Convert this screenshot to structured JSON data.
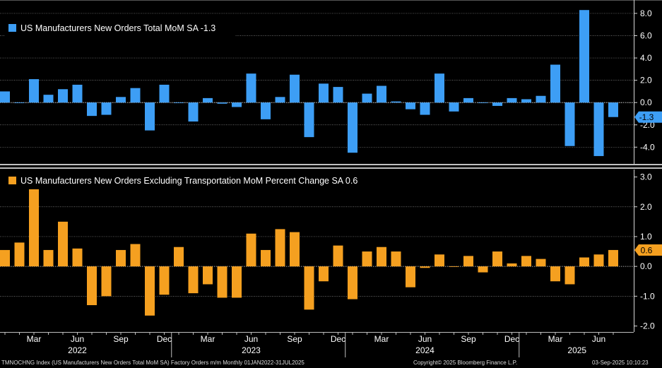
{
  "chart_data": [
    {
      "type": "bar",
      "title": "US Manufacturers New Orders Total MoM SA",
      "legend_value": "-1.3",
      "last_value_label": "-1.3",
      "color": "#3d9ef5",
      "ylim": [
        -5.5,
        9.2
      ],
      "yticks": [
        -4.0,
        -2.0,
        0.0,
        2.0,
        4.0,
        6.0,
        8.0
      ],
      "ytick_labels": [
        "-4.0",
        "-2.0",
        "0.0",
        "2.0",
        "4.0",
        "6.0",
        "8.0"
      ],
      "gridlines": [
        -4.0,
        -2.0,
        0.0,
        2.0,
        4.0,
        6.0,
        8.0
      ],
      "values": [
        1.0,
        0.0,
        2.1,
        0.7,
        1.2,
        1.6,
        -1.2,
        -1.1,
        0.5,
        1.3,
        -2.5,
        1.6,
        0.0,
        -1.7,
        0.4,
        -0.1,
        -0.4,
        2.6,
        -1.5,
        0.5,
        2.5,
        -3.1,
        1.7,
        1.4,
        -4.5,
        0.8,
        1.5,
        0.1,
        -0.6,
        -1.1,
        2.6,
        -0.8,
        0.4,
        0.0,
        -0.3,
        0.4,
        0.3,
        0.6,
        3.4,
        -3.9,
        8.3,
        -4.8,
        -1.3
      ]
    },
    {
      "type": "bar",
      "title": "US Manufacturers New Orders Excluding Transportation MoM Percent Change SA",
      "legend_value": "0.6",
      "last_value_label": "0.6",
      "color": "#f5a020",
      "ylim": [
        -2.2,
        3.25
      ],
      "yticks": [
        -2.0,
        -1.0,
        0.0,
        1.0,
        2.0,
        3.0
      ],
      "ytick_labels": [
        "-2.0",
        "-1.0",
        "0.0",
        "1.0",
        "2.0",
        "3.0"
      ],
      "gridlines": [
        -1.0,
        1.0,
        2.0
      ],
      "values": [
        0.55,
        0.8,
        2.7,
        0.55,
        1.5,
        0.6,
        -1.3,
        -1.0,
        0.55,
        0.75,
        -1.65,
        -0.95,
        0.65,
        -0.9,
        -0.6,
        -1.05,
        -1.05,
        1.1,
        0.55,
        1.25,
        1.15,
        -1.45,
        -0.5,
        0.7,
        -1.1,
        0.5,
        0.65,
        0.5,
        -0.7,
        -0.05,
        0.4,
        0.0,
        0.35,
        -0.2,
        0.5,
        0.1,
        0.35,
        0.25,
        -0.5,
        -0.6,
        0.3,
        0.4,
        0.55
      ]
    }
  ],
  "x_axis": {
    "month_labels": [
      {
        "label": "Mar",
        "index": 2
      },
      {
        "label": "Jun",
        "index": 5
      },
      {
        "label": "Sep",
        "index": 8
      },
      {
        "label": "Dec",
        "index": 11
      },
      {
        "label": "Mar",
        "index": 14
      },
      {
        "label": "Jun",
        "index": 17
      },
      {
        "label": "Sep",
        "index": 20
      },
      {
        "label": "Dec",
        "index": 23
      },
      {
        "label": "Mar",
        "index": 26
      },
      {
        "label": "Jun",
        "index": 29
      },
      {
        "label": "Sep",
        "index": 32
      },
      {
        "label": "Dec",
        "index": 35
      },
      {
        "label": "Mar",
        "index": 38
      },
      {
        "label": "Jun",
        "index": 41
      }
    ],
    "year_labels": [
      {
        "label": "2022",
        "center": 5
      },
      {
        "label": "2023",
        "center": 17
      },
      {
        "label": "2024",
        "center": 29
      },
      {
        "label": "2025",
        "center": 39.5
      }
    ],
    "year_separators": [
      11.5,
      23.5,
      35.5
    ]
  },
  "footer": {
    "left": "TMNOCHNG Index (US Manufacturers New Orders Total MoM SA) Factory Orders m/m  Monthly 01JAN2022-31JUL2025",
    "center": "Copyright© 2025 Bloomberg Finance L.P.",
    "right": "03-Sep-2025 10:10:23"
  },
  "colors": {
    "background": "#000000",
    "grid": "#8a8a8a",
    "axis_text": "#ffffff",
    "legend_bg": "#000000"
  }
}
